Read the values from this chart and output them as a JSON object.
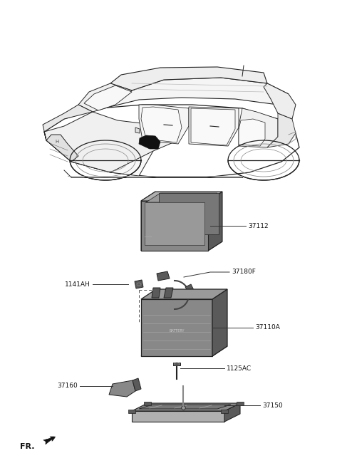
{
  "background_color": "#ffffff",
  "parts": [
    {
      "id": "37112",
      "label": "37112"
    },
    {
      "id": "37180F",
      "label": "37180F"
    },
    {
      "id": "1141AH",
      "label": "1141AH"
    },
    {
      "id": "37110A",
      "label": "37110A"
    },
    {
      "id": "1125AC",
      "label": "1125AC"
    },
    {
      "id": "37160",
      "label": "37160"
    },
    {
      "id": "37150",
      "label": "37150"
    }
  ],
  "fr_label": "FR.",
  "gray_dark": "#5a5a5a",
  "gray_mid": "#888888",
  "gray_light": "#b0b0b0",
  "gray_lighter": "#cccccc",
  "outline": "#222222",
  "label_color": "#111111",
  "label_fontsize": 6.5,
  "line_color": "#333333",
  "line_width": 0.7
}
